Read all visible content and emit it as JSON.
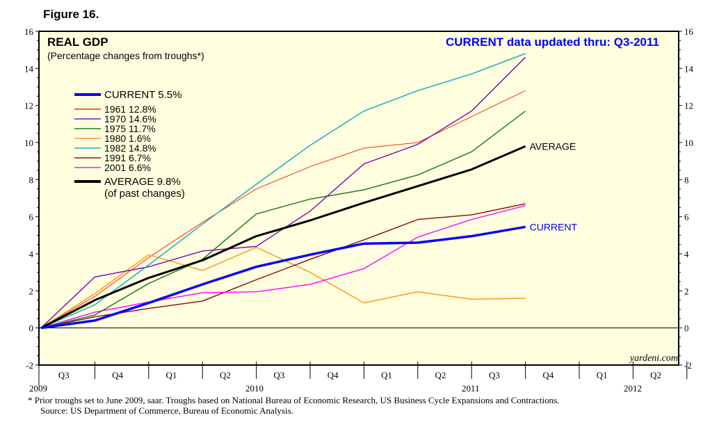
{
  "figure_label": "Figure 16.",
  "chart_data": {
    "type": "line",
    "title": "REAL GDP",
    "subtitle": "(Percentage changes from troughs*)",
    "update_note": "CURRENT data updated thru: Q3-2011",
    "watermark": "yardeni.com",
    "ylim": [
      -2,
      16
    ],
    "yticks": [
      -2,
      0,
      2,
      4,
      6,
      8,
      10,
      12,
      14,
      16
    ],
    "quarters": [
      "Q3",
      "Q4",
      "Q1",
      "Q2",
      "Q3",
      "Q4",
      "Q1",
      "Q2",
      "Q3",
      "Q4",
      "Q1",
      "Q2"
    ],
    "years": [
      "2009",
      "2010",
      "2011",
      "2012"
    ],
    "x": [
      0,
      1,
      2,
      3,
      4,
      5,
      6,
      7,
      8,
      9
    ],
    "series": [
      {
        "name": "1961",
        "label": "1961 12.8%",
        "color": "#ff2a00",
        "width": 1,
        "values": [
          0,
          1.7,
          3.8,
          5.7,
          7.5,
          8.7,
          9.7,
          10.0,
          11.4,
          12.8
        ]
      },
      {
        "name": "1970",
        "label": "1970 14.6%",
        "color": "#8a10b0",
        "width": 1.5,
        "values": [
          0,
          2.75,
          3.3,
          4.15,
          4.4,
          6.3,
          8.85,
          9.9,
          11.7,
          14.6
        ]
      },
      {
        "name": "1975",
        "label": "1975 11.7%",
        "color": "#1f7a1f",
        "width": 1.5,
        "values": [
          0,
          0.7,
          2.4,
          3.7,
          6.15,
          6.95,
          7.45,
          8.25,
          9.5,
          11.7
        ]
      },
      {
        "name": "1980",
        "label": "1980 1.6%",
        "color": "#ff9a1a",
        "width": 1.5,
        "values": [
          0,
          1.85,
          3.95,
          3.1,
          4.35,
          3.0,
          1.35,
          1.95,
          1.55,
          1.6
        ]
      },
      {
        "name": "1982",
        "label": "1982 14.8%",
        "color": "#1ea8c0",
        "width": 1.5,
        "values": [
          0,
          1.25,
          3.4,
          5.6,
          7.75,
          9.85,
          11.7,
          12.8,
          13.7,
          14.8
        ]
      },
      {
        "name": "1991",
        "label": "1991 6.7%",
        "color": "#8b1a1a",
        "width": 1.5,
        "values": [
          0,
          0.6,
          1.05,
          1.45,
          2.6,
          3.7,
          4.75,
          5.85,
          6.1,
          6.7
        ]
      },
      {
        "name": "2001",
        "label": "2001 6.6%",
        "color": "#ff10ff",
        "width": 1.5,
        "values": [
          0,
          0.85,
          1.4,
          1.9,
          1.95,
          2.35,
          3.2,
          4.9,
          5.85,
          6.6
        ]
      },
      {
        "name": "AVERAGE",
        "label": "AVERAGE 9.8%",
        "sublabel": "(of past changes)",
        "color": "#000000",
        "width": 3,
        "values": [
          0,
          1.5,
          2.7,
          3.65,
          4.95,
          5.8,
          6.75,
          7.65,
          8.55,
          9.8
        ]
      },
      {
        "name": "CURRENT",
        "label": "CURRENT 5.5%",
        "color": "#0000ff",
        "width": 3.5,
        "values": [
          0,
          0.4,
          1.35,
          2.35,
          3.3,
          3.95,
          4.55,
          4.6,
          4.95,
          5.45
        ]
      }
    ],
    "end_labels": {
      "average": "AVERAGE",
      "current": "CURRENT"
    },
    "legend_order": [
      "CURRENT",
      "1961",
      "1970",
      "1975",
      "1980",
      "1982",
      "1991",
      "2001",
      "AVERAGE"
    ],
    "legend_position": "top-left"
  },
  "footnote": {
    "line1": "* Prior troughs set to June 2009, saar. Troughs based on National Bureau of Economic Research, US Business Cycle Expansions and Contractions.",
    "line2": "Source: US Department of Commerce, Bureau of Economic Analysis."
  }
}
